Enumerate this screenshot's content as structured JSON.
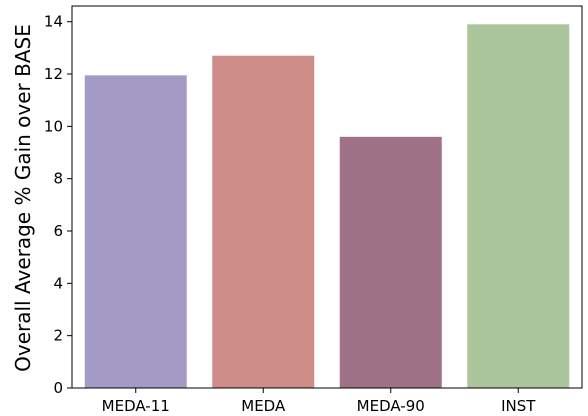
{
  "chart_data": {
    "type": "bar",
    "title": "",
    "xlabel": "",
    "ylabel": "Overall Average % Gain over BASE",
    "categories": [
      "MEDA-11",
      "MEDA",
      "MEDA-90",
      "INST"
    ],
    "values": [
      11.95,
      12.7,
      9.6,
      13.9
    ],
    "colors": [
      "#a39bc3",
      "#cd8c87",
      "#a07287",
      "#abc59c"
    ],
    "ylim": [
      0,
      14.6
    ],
    "yticks": [
      0,
      2,
      4,
      6,
      8,
      10,
      12,
      14
    ],
    "grid": false,
    "legend": "none"
  }
}
